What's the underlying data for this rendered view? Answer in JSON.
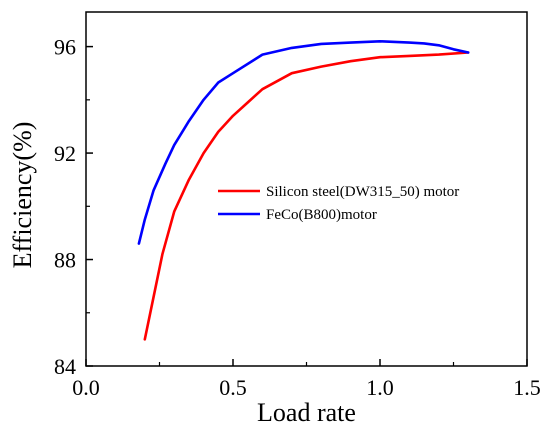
{
  "chart_data": {
    "type": "line",
    "xlabel": "Load rate",
    "ylabel": "Efficiency(%)",
    "xlim": [
      0.0,
      1.5
    ],
    "ylim": [
      84,
      97.3
    ],
    "x_ticks": [
      0.0,
      0.5,
      1.0,
      1.5
    ],
    "x_tick_labels": [
      "0.0",
      "0.5",
      "1.0",
      "1.5"
    ],
    "y_ticks": [
      84,
      88,
      92,
      96
    ],
    "y_tick_labels": [
      "84",
      "88",
      "92",
      "96"
    ],
    "grid": false,
    "legend_position": "center-right",
    "series": [
      {
        "name": "Silicon steel(DW315_50) motor",
        "color": "#ff0000",
        "x": [
          0.2,
          0.23,
          0.26,
          0.3,
          0.35,
          0.4,
          0.45,
          0.5,
          0.55,
          0.6,
          0.65,
          0.7,
          0.8,
          0.9,
          1.0,
          1.1,
          1.2,
          1.3
        ],
        "y": [
          85.0,
          86.6,
          88.2,
          89.8,
          91.0,
          92.0,
          92.8,
          93.4,
          93.9,
          94.4,
          94.7,
          95.0,
          95.25,
          95.45,
          95.6,
          95.65,
          95.7,
          95.78
        ]
      },
      {
        "name": "FeCo(B800)motor",
        "color": "#0000ff",
        "x": [
          0.18,
          0.2,
          0.23,
          0.27,
          0.3,
          0.35,
          0.4,
          0.45,
          0.5,
          0.6,
          0.7,
          0.8,
          0.9,
          1.0,
          1.1,
          1.15,
          1.2,
          1.25,
          1.3
        ],
        "y": [
          88.6,
          89.5,
          90.6,
          91.6,
          92.3,
          93.2,
          94.0,
          94.65,
          95.0,
          95.7,
          95.95,
          96.1,
          96.15,
          96.2,
          96.15,
          96.12,
          96.05,
          95.9,
          95.78
        ]
      }
    ]
  }
}
